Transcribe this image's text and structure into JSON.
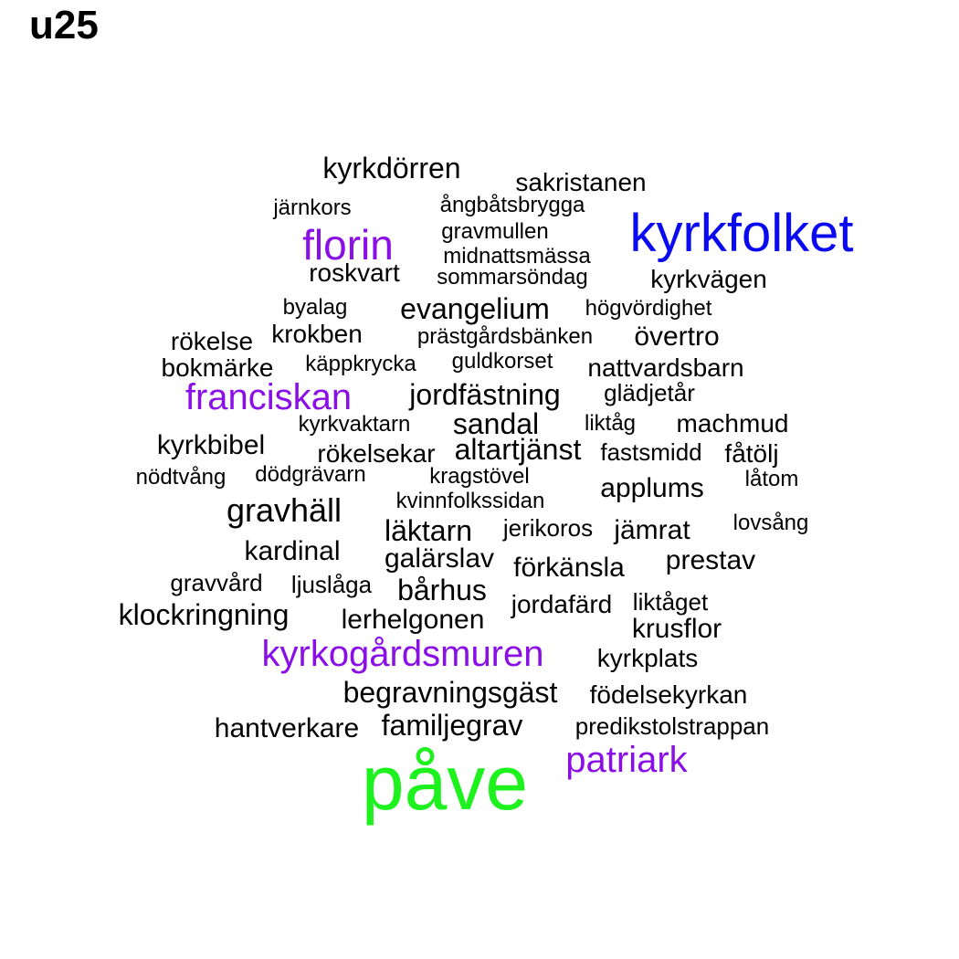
{
  "title": "u25",
  "palette": {
    "black": "#000000",
    "purple": "#8a0fe6",
    "blue": "#0a0af0",
    "green": "#1ef21e"
  },
  "words": [
    {
      "text": "påve",
      "color": "green",
      "weight": 10
    },
    {
      "text": "kyrkfolket",
      "color": "blue",
      "weight": 6
    },
    {
      "text": "kyrkogårdsmuren",
      "color": "purple",
      "weight": 4
    },
    {
      "text": "franciskan",
      "color": "purple",
      "weight": 4
    },
    {
      "text": "florin",
      "color": "purple",
      "weight": 4
    },
    {
      "text": "patriark",
      "color": "purple",
      "weight": 4
    },
    {
      "text": "kyrkdörren",
      "color": "black",
      "weight": 3
    },
    {
      "text": "sakristanen",
      "color": "black",
      "weight": 2
    },
    {
      "text": "järnkors",
      "color": "black",
      "weight": 1
    },
    {
      "text": "ångbåtsbrygga",
      "color": "black",
      "weight": 1
    },
    {
      "text": "gravmullen",
      "color": "black",
      "weight": 1
    },
    {
      "text": "midnattsmässa",
      "color": "black",
      "weight": 1
    },
    {
      "text": "roskvart",
      "color": "black",
      "weight": 2
    },
    {
      "text": "sommarsöndag",
      "color": "black",
      "weight": 1
    },
    {
      "text": "kyrkvägen",
      "color": "black",
      "weight": 2
    },
    {
      "text": "byalag",
      "color": "black",
      "weight": 1
    },
    {
      "text": "evangelium",
      "color": "black",
      "weight": 3
    },
    {
      "text": "högvördighet",
      "color": "black",
      "weight": 1
    },
    {
      "text": "rökelse",
      "color": "black",
      "weight": 2
    },
    {
      "text": "krokben",
      "color": "black",
      "weight": 2
    },
    {
      "text": "prästgårdsbänken",
      "color": "black",
      "weight": 1
    },
    {
      "text": "övertro",
      "color": "black",
      "weight": 2
    },
    {
      "text": "bokmärke",
      "color": "black",
      "weight": 2
    },
    {
      "text": "käppkrycka",
      "color": "black",
      "weight": 1
    },
    {
      "text": "guldkorset",
      "color": "black",
      "weight": 1
    },
    {
      "text": "nattvardsbarn",
      "color": "black",
      "weight": 2
    },
    {
      "text": "jordfästning",
      "color": "black",
      "weight": 3
    },
    {
      "text": "glädjetår",
      "color": "black",
      "weight": 1
    },
    {
      "text": "kyrkvaktarn",
      "color": "black",
      "weight": 1
    },
    {
      "text": "sandal",
      "color": "black",
      "weight": 3
    },
    {
      "text": "liktåg",
      "color": "black",
      "weight": 1
    },
    {
      "text": "machmud",
      "color": "black",
      "weight": 1
    },
    {
      "text": "kyrkbibel",
      "color": "black",
      "weight": 2
    },
    {
      "text": "rökelsekar",
      "color": "black",
      "weight": 2
    },
    {
      "text": "altartjänst",
      "color": "black",
      "weight": 3
    },
    {
      "text": "fastsmidd",
      "color": "black",
      "weight": 1
    },
    {
      "text": "fåtölj",
      "color": "black",
      "weight": 2
    },
    {
      "text": "nödtvång",
      "color": "black",
      "weight": 1
    },
    {
      "text": "dödgrävarn",
      "color": "black",
      "weight": 1
    },
    {
      "text": "kragstövel",
      "color": "black",
      "weight": 1
    },
    {
      "text": "låtom",
      "color": "black",
      "weight": 1
    },
    {
      "text": "applums",
      "color": "black",
      "weight": 2
    },
    {
      "text": "gravhäll",
      "color": "black",
      "weight": 3
    },
    {
      "text": "kvinnfolkssidan",
      "color": "black",
      "weight": 1
    },
    {
      "text": "läktarn",
      "color": "black",
      "weight": 3
    },
    {
      "text": "jerikoros",
      "color": "black",
      "weight": 2
    },
    {
      "text": "jämrat",
      "color": "black",
      "weight": 2
    },
    {
      "text": "lovsång",
      "color": "black",
      "weight": 1
    },
    {
      "text": "kardinal",
      "color": "black",
      "weight": 2
    },
    {
      "text": "galärslav",
      "color": "black",
      "weight": 2
    },
    {
      "text": "förkänsla",
      "color": "black",
      "weight": 2
    },
    {
      "text": "prestav",
      "color": "black",
      "weight": 2
    },
    {
      "text": "gravvård",
      "color": "black",
      "weight": 1
    },
    {
      "text": "ljuslåga",
      "color": "black",
      "weight": 1
    },
    {
      "text": "bårhus",
      "color": "black",
      "weight": 3
    },
    {
      "text": "jordafärd",
      "color": "black",
      "weight": 2
    },
    {
      "text": "liktåget",
      "color": "black",
      "weight": 1
    },
    {
      "text": "klockringning",
      "color": "black",
      "weight": 3
    },
    {
      "text": "lerhelgonen",
      "color": "black",
      "weight": 2
    },
    {
      "text": "krusflor",
      "color": "black",
      "weight": 2
    },
    {
      "text": "kyrkplats",
      "color": "black",
      "weight": 2
    },
    {
      "text": "begravningsgäst",
      "color": "black",
      "weight": 3
    },
    {
      "text": "födelsekyrkan",
      "color": "black",
      "weight": 2
    },
    {
      "text": "familjegrav",
      "color": "black",
      "weight": 3
    },
    {
      "text": "hantverkare",
      "color": "black",
      "weight": 2
    },
    {
      "text": "predikstolstrappan",
      "color": "black",
      "weight": 1
    }
  ]
}
